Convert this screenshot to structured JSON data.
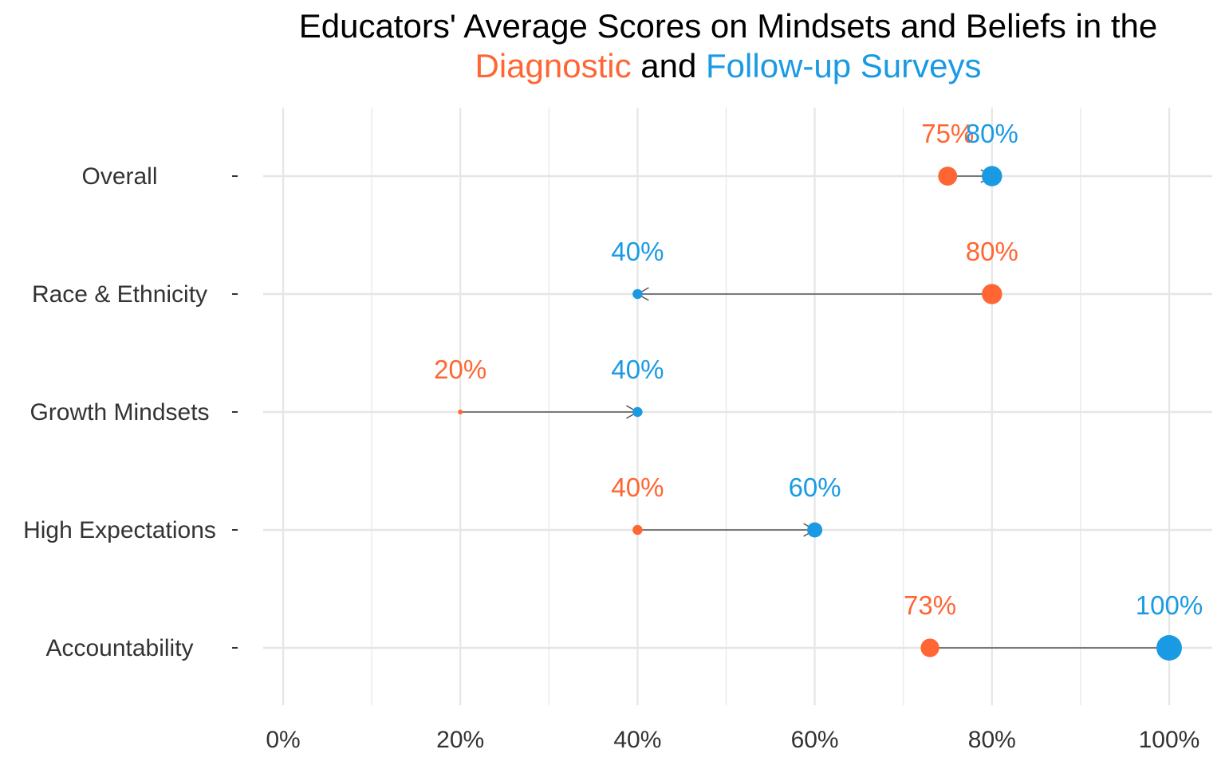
{
  "title": {
    "line1": "Educators' Average Scores on Mindsets and Beliefs in the",
    "line2_part1": "Diagnostic",
    "line2_part2": " and ",
    "line2_part3": "Follow-up Surveys"
  },
  "colors": {
    "diagnostic": "#FF6633",
    "followup": "#1B9AE4",
    "arrow": "#555555",
    "grid": "#E6E6E6",
    "text": "#333333"
  },
  "chart_data": {
    "type": "scatter",
    "title": "Educators' Average Scores on Mindsets and Beliefs in the Diagnostic and Follow-up Surveys",
    "xlabel": "",
    "ylabel": "",
    "xlim": [
      0,
      100
    ],
    "x_ticks": [
      0,
      20,
      40,
      60,
      80,
      100
    ],
    "x_tick_labels": [
      "0%",
      "20%",
      "40%",
      "60%",
      "80%",
      "100%"
    ],
    "grid": true,
    "categories": [
      "Overall",
      "Race & Ethnicity",
      "Growth Mindsets",
      "High Expectations",
      "Accountability"
    ],
    "series": [
      {
        "name": "Diagnostic",
        "values": [
          75,
          80,
          20,
          40,
          73
        ],
        "labels": [
          "75%",
          "80%",
          "20%",
          "40%",
          "73%"
        ]
      },
      {
        "name": "Follow-up Surveys",
        "values": [
          80,
          40,
          40,
          60,
          100
        ],
        "labels": [
          "80%",
          "40%",
          "40%",
          "60%",
          "100%"
        ]
      }
    ]
  }
}
